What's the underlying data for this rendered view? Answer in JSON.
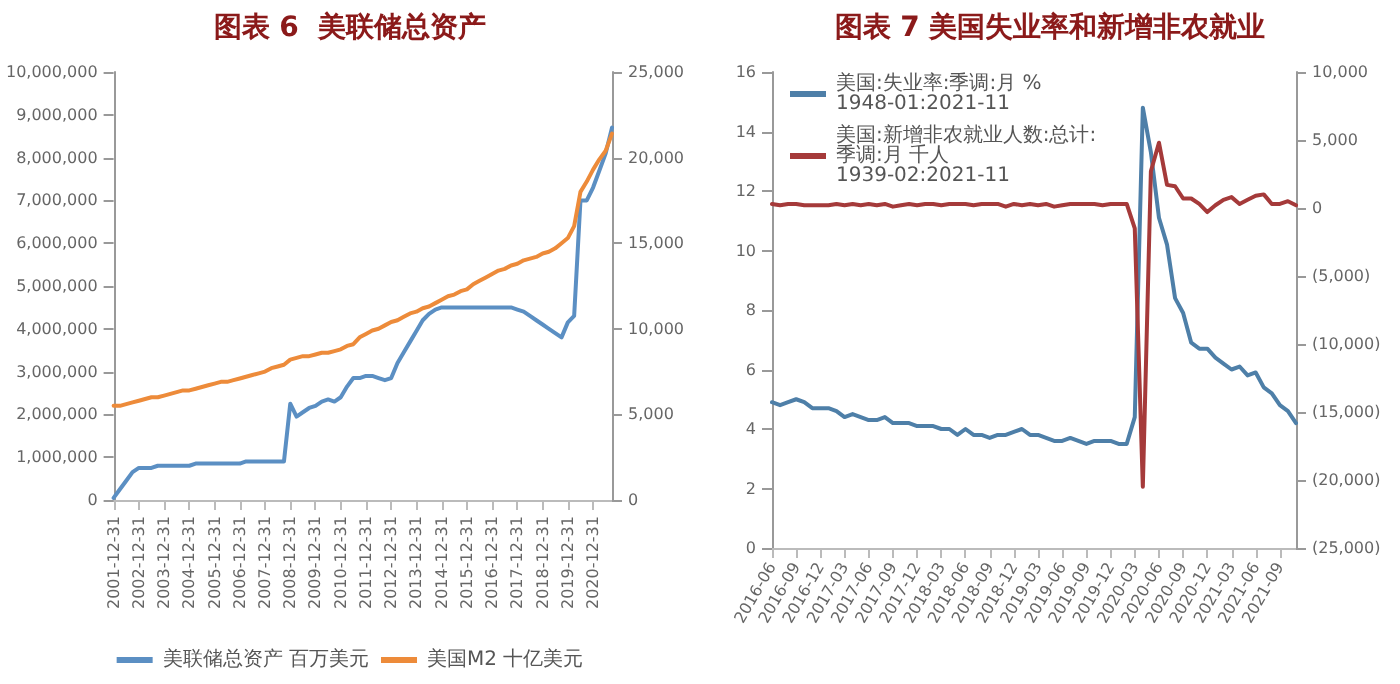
{
  "chart_data": [
    {
      "type": "line",
      "title": "图表 6  美联储总资产",
      "categories": [
        "2001-12-31",
        null,
        null,
        null,
        "2002-12-31",
        null,
        null,
        null,
        "2003-12-31",
        null,
        null,
        null,
        "2004-12-31",
        null,
        null,
        null,
        "2005-12-31",
        null,
        null,
        null,
        "2006-12-31",
        null,
        null,
        null,
        "2007-12-31",
        null,
        null,
        null,
        "2008-12-31",
        null,
        null,
        null,
        "2009-12-31",
        null,
        null,
        null,
        "2010-12-31",
        null,
        null,
        null,
        "2011-12-31",
        null,
        null,
        null,
        "2012-12-31",
        null,
        null,
        null,
        "2013-12-31",
        null,
        null,
        null,
        "2014-12-31",
        null,
        null,
        null,
        "2015-12-31",
        null,
        null,
        null,
        "2016-12-31",
        null,
        null,
        null,
        "2017-12-31",
        null,
        null,
        null,
        "2018-12-31",
        null,
        null,
        null,
        "2019-12-31",
        null,
        null,
        null,
        "2020-12-31",
        null,
        null,
        null
      ],
      "series": [
        {
          "name": "美联储总资产 百万美元",
          "color": "#5b8fc3",
          "values": [
            50000,
            250000,
            450000,
            650000,
            750000,
            750000,
            750000,
            800000,
            800000,
            800000,
            800000,
            800000,
            800000,
            850000,
            850000,
            850000,
            850000,
            850000,
            850000,
            850000,
            850000,
            900000,
            900000,
            900000,
            900000,
            900000,
            900000,
            900000,
            2250000,
            1950000,
            2050000,
            2150000,
            2200000,
            2300000,
            2350000,
            2300000,
            2400000,
            2650000,
            2850000,
            2850000,
            2900000,
            2900000,
            2850000,
            2800000,
            2850000,
            3200000,
            3450000,
            3700000,
            3950000,
            4200000,
            4350000,
            4450000,
            4500000,
            4500000,
            4500000,
            4500000,
            4500000,
            4500000,
            4500000,
            4500000,
            4500000,
            4500000,
            4500000,
            4500000,
            4450000,
            4400000,
            4300000,
            4200000,
            4100000,
            4000000,
            3900000,
            3800000,
            4150000,
            4300000,
            7000000,
            7000000,
            7300000,
            7700000,
            8100000,
            8700000
          ]
        },
        {
          "name": "美国M2 十亿美元",
          "color": "#ed8b3a",
          "axis": "y2",
          "values": [
            5500,
            5500,
            5600,
            5700,
            5800,
            5900,
            6000,
            6000,
            6100,
            6200,
            6300,
            6400,
            6400,
            6500,
            6600,
            6700,
            6800,
            6900,
            6900,
            7000,
            7100,
            7200,
            7300,
            7400,
            7500,
            7700,
            7800,
            7900,
            8200,
            8300,
            8400,
            8400,
            8500,
            8600,
            8600,
            8700,
            8800,
            9000,
            9100,
            9500,
            9700,
            9900,
            10000,
            10200,
            10400,
            10500,
            10700,
            10900,
            11000,
            11200,
            11300,
            11500,
            11700,
            11900,
            12000,
            12200,
            12300,
            12600,
            12800,
            13000,
            13200,
            13400,
            13500,
            13700,
            13800,
            14000,
            14100,
            14200,
            14400,
            14500,
            14700,
            15000,
            15300,
            16000,
            18000,
            18600,
            19300,
            19900,
            20400,
            21400
          ]
        }
      ],
      "ylim": [
        0,
        10000000
      ],
      "yticks": [
        0,
        {
          "value": 1000000,
          "label": "1,000,000"
        },
        {
          "value": 2000000,
          "label": "2,000,000"
        },
        {
          "value": 3000000,
          "label": "3,000,000"
        },
        {
          "value": 4000000,
          "label": "4,000,000"
        },
        {
          "value": 5000000,
          "label": "5,000,000"
        },
        {
          "value": 6000000,
          "label": "6,000,000"
        },
        {
          "value": 7000000,
          "label": "7,000,000"
        },
        {
          "value": 8000000,
          "label": "8,000,000"
        },
        {
          "value": 9000000,
          "label": "9,000,000"
        },
        {
          "value": 10000000,
          "label": "10,000,000"
        }
      ],
      "y2lim": [
        0,
        25000
      ],
      "y2ticks": [
        0,
        {
          "value": 5000,
          "label": "5,000"
        },
        {
          "value": 10000,
          "label": "10,000"
        },
        {
          "value": 15000,
          "label": "15,000"
        },
        {
          "value": 20000,
          "label": "20,000"
        },
        {
          "value": 25000,
          "label": "25,000"
        }
      ],
      "legend": "bottom",
      "marker": "none",
      "line_style": "solid"
    },
    {
      "type": "line",
      "title": "图表 7 美国失业率和新增非农就业",
      "categories": [
        "2016-06",
        null,
        null,
        "2016-09",
        null,
        null,
        "2016-12",
        null,
        null,
        "2017-03",
        null,
        null,
        "2017-06",
        null,
        null,
        "2017-09",
        null,
        null,
        "2017-12",
        null,
        null,
        "2018-03",
        null,
        null,
        "2018-06",
        null,
        null,
        "2018-09",
        null,
        null,
        "2018-12",
        null,
        null,
        "2019-03",
        null,
        null,
        "2019-06",
        null,
        null,
        "2019-09",
        null,
        null,
        "2019-12",
        null,
        null,
        "2020-03",
        null,
        null,
        "2020-06",
        null,
        null,
        "2020-09",
        null,
        null,
        "2020-12",
        null,
        null,
        "2021-03",
        null,
        null,
        "2021-06",
        null,
        null,
        "2021-09",
        null,
        null
      ],
      "series": [
        {
          "name": "美国:失业率:季调:月 % 1948-01:2021-11",
          "color": "#4e7fa8",
          "values": [
            4.9,
            4.8,
            4.9,
            5.0,
            4.9,
            4.7,
            4.7,
            4.7,
            4.6,
            4.4,
            4.5,
            4.4,
            4.3,
            4.3,
            4.4,
            4.2,
            4.2,
            4.2,
            4.1,
            4.1,
            4.1,
            4.0,
            4.0,
            3.8,
            4.0,
            3.8,
            3.8,
            3.7,
            3.8,
            3.8,
            3.9,
            4.0,
            3.8,
            3.8,
            3.7,
            3.6,
            3.6,
            3.7,
            3.6,
            3.5,
            3.6,
            3.6,
            3.6,
            3.5,
            3.5,
            4.4,
            14.8,
            13.3,
            11.1,
            10.2,
            8.4,
            7.9,
            6.9,
            6.7,
            6.7,
            6.4,
            6.2,
            6.0,
            6.1,
            5.8,
            5.9,
            5.4,
            5.2,
            4.8,
            4.6,
            4.2
          ]
        },
        {
          "name": "美国:新增非农就业人数:总计:季调:月 千人 1939-02:2021-11",
          "color": "#a53a3a",
          "axis": "y2",
          "values": [
            300,
            200,
            300,
            300,
            200,
            200,
            200,
            200,
            300,
            200,
            300,
            200,
            300,
            200,
            300,
            100,
            200,
            300,
            200,
            300,
            300,
            200,
            300,
            300,
            300,
            200,
            300,
            300,
            300,
            100,
            300,
            200,
            300,
            200,
            300,
            100,
            200,
            300,
            300,
            300,
            300,
            200,
            300,
            300,
            300,
            -1500,
            -20500,
            2700,
            4800,
            1700,
            1600,
            700,
            700,
            300,
            -300,
            200,
            600,
            800,
            300,
            600,
            900,
            1000,
            300,
            300,
            500,
            200
          ]
        }
      ],
      "ylim": [
        0,
        16
      ],
      "yticks": [
        0,
        2,
        4,
        6,
        8,
        10,
        12,
        14,
        16
      ],
      "y2lim": [
        -25000,
        10000
      ],
      "y2ticks": [
        {
          "value": -25000,
          "label": "(25,000)"
        },
        {
          "value": -20000,
          "label": "(20,000)"
        },
        {
          "value": -15000,
          "label": "(15,000)"
        },
        {
          "value": -10000,
          "label": "(10,000)"
        },
        {
          "value": -5000,
          "label": "(5,000)"
        },
        0,
        {
          "value": 5000,
          "label": "5,000"
        },
        {
          "value": 10000,
          "label": "10,000"
        }
      ],
      "legend": "top left",
      "marker": "none",
      "line_style": "solid"
    }
  ]
}
